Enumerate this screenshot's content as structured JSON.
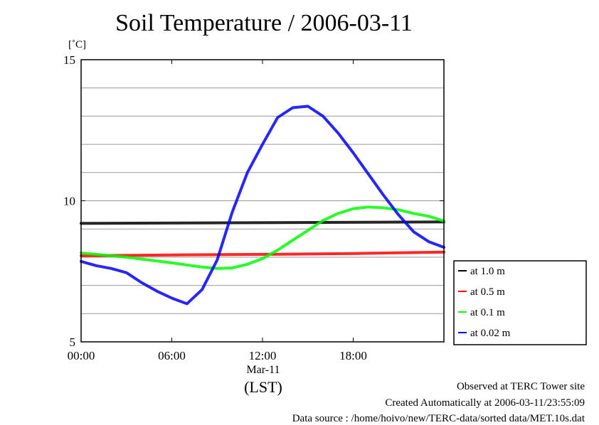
{
  "chart_data": {
    "type": "line",
    "title": "Soil Temperature / 2006-03-11",
    "ylabel": "[˚C]",
    "ylim": [
      5,
      15
    ],
    "y_ticks": [
      "5",
      "10",
      "15"
    ],
    "xlim": [
      "00:00",
      "24:00"
    ],
    "x_ticks": [
      "00:00",
      "06:00",
      "12:00",
      "18:00"
    ],
    "x_date_label": "Mar-11",
    "x_timezone_label": "(LST)",
    "grid": true,
    "legend_position": "right",
    "series": [
      {
        "name": "at 1.0 m",
        "color": "#000000",
        "x": [
          0,
          24
        ],
        "values": [
          9.2,
          9.25
        ]
      },
      {
        "name": "at 0.5 m",
        "color": "#ff0000",
        "x": [
          0,
          6,
          12,
          18,
          24
        ],
        "values": [
          8.05,
          8.08,
          8.1,
          8.13,
          8.18
        ]
      },
      {
        "name": "at 0.1 m",
        "color": "#00ff00",
        "x": [
          0,
          3,
          6,
          8,
          9,
          10,
          11,
          12,
          13,
          14,
          15,
          16,
          17,
          18,
          19,
          20,
          21,
          22,
          23,
          24
        ],
        "values": [
          8.15,
          8.0,
          7.8,
          7.65,
          7.6,
          7.62,
          7.75,
          7.95,
          8.25,
          8.6,
          8.95,
          9.3,
          9.55,
          9.72,
          9.78,
          9.75,
          9.68,
          9.55,
          9.45,
          9.28
        ]
      },
      {
        "name": "at 0.02 m",
        "color": "#0000ff",
        "x": [
          0,
          1,
          2,
          3,
          4,
          5,
          6,
          7,
          8,
          9,
          10,
          11,
          12,
          13,
          14,
          15,
          16,
          17,
          18,
          19,
          20,
          21,
          22,
          23,
          24
        ],
        "values": [
          7.85,
          7.7,
          7.6,
          7.45,
          7.1,
          6.8,
          6.55,
          6.35,
          6.85,
          7.9,
          9.6,
          11.0,
          12.0,
          12.95,
          13.3,
          13.35,
          13.0,
          12.4,
          11.7,
          10.95,
          10.2,
          9.5,
          8.9,
          8.55,
          8.35
        ]
      }
    ]
  },
  "footer": {
    "site": "Observed at TERC Tower site",
    "created": "Created Automatically at 2006-03-11/23:55:09",
    "source": "Data source : /home/hoivo/new/TERC-data/sorted  data/MET.10s.dat"
  }
}
